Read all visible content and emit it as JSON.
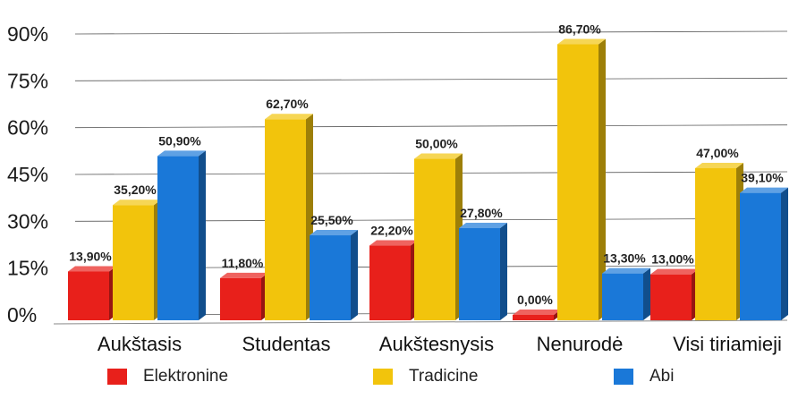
{
  "chart_data": {
    "type": "bar",
    "categories": [
      "Aukštasis",
      "Studentas",
      "Aukštesnysis",
      "Nenurodė",
      "Visi tiriamieji"
    ],
    "series": [
      {
        "name": "Elektronine",
        "color": "#e8201b",
        "values": [
          13.9,
          11.8,
          22.2,
          0.0,
          13.0
        ],
        "labels": [
          "13,90%",
          "11,80%",
          "22,20%",
          "0,00%",
          "13,00%"
        ]
      },
      {
        "name": "Tradicine",
        "color": "#f2c40c",
        "values": [
          35.2,
          62.7,
          50.0,
          86.7,
          47.0
        ],
        "labels": [
          "35,20%",
          "62,70%",
          "50,00%",
          "86,70%",
          "47,00%"
        ]
      },
      {
        "name": "Abi",
        "color": "#1a78d8",
        "values": [
          50.9,
          25.5,
          27.8,
          13.3,
          39.1
        ],
        "labels": [
          "50,90%",
          "25,50%",
          "27,80%",
          "13,30%",
          "39,10%"
        ]
      }
    ],
    "yticks": [
      "0%",
      "15%",
      "30%",
      "45%",
      "60%",
      "75%",
      "90%"
    ],
    "ylim": [
      0,
      90
    ],
    "grid": true,
    "legend_position": "bottom",
    "style": "3d-columns"
  }
}
